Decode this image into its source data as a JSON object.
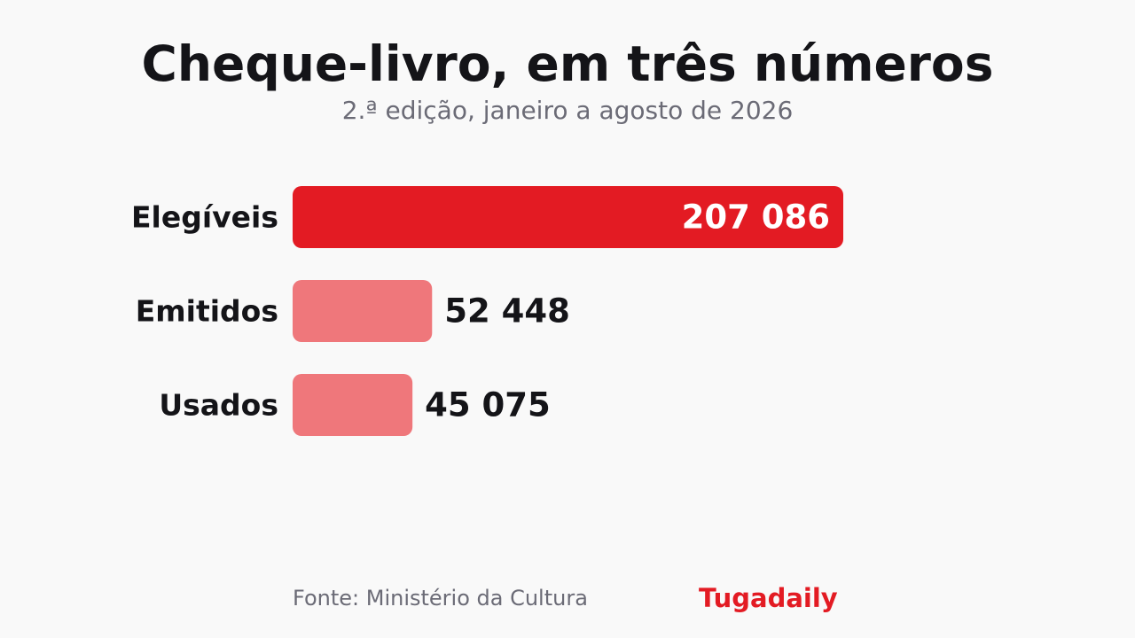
{
  "chart_data": {
    "type": "bar",
    "orientation": "horizontal",
    "title": "Cheque-livro, em três números",
    "subtitle": "2.ª edição, janeiro a agosto de 2026",
    "categories": [
      "Elegíveis",
      "Emitidos",
      "Usados"
    ],
    "values": [
      207086,
      52448,
      45075
    ],
    "value_labels": [
      "207 086",
      "52 448",
      "45 075"
    ],
    "xlim": [
      0,
      207086
    ],
    "grid": false,
    "colors": {
      "highlight": "#e31b23",
      "secondary": "#ef777b",
      "highlight_label": "#ffffff",
      "label": "#141418"
    }
  },
  "footer": {
    "source": "Fonte: Ministério da Cultura",
    "brand": "Tugadaily"
  }
}
